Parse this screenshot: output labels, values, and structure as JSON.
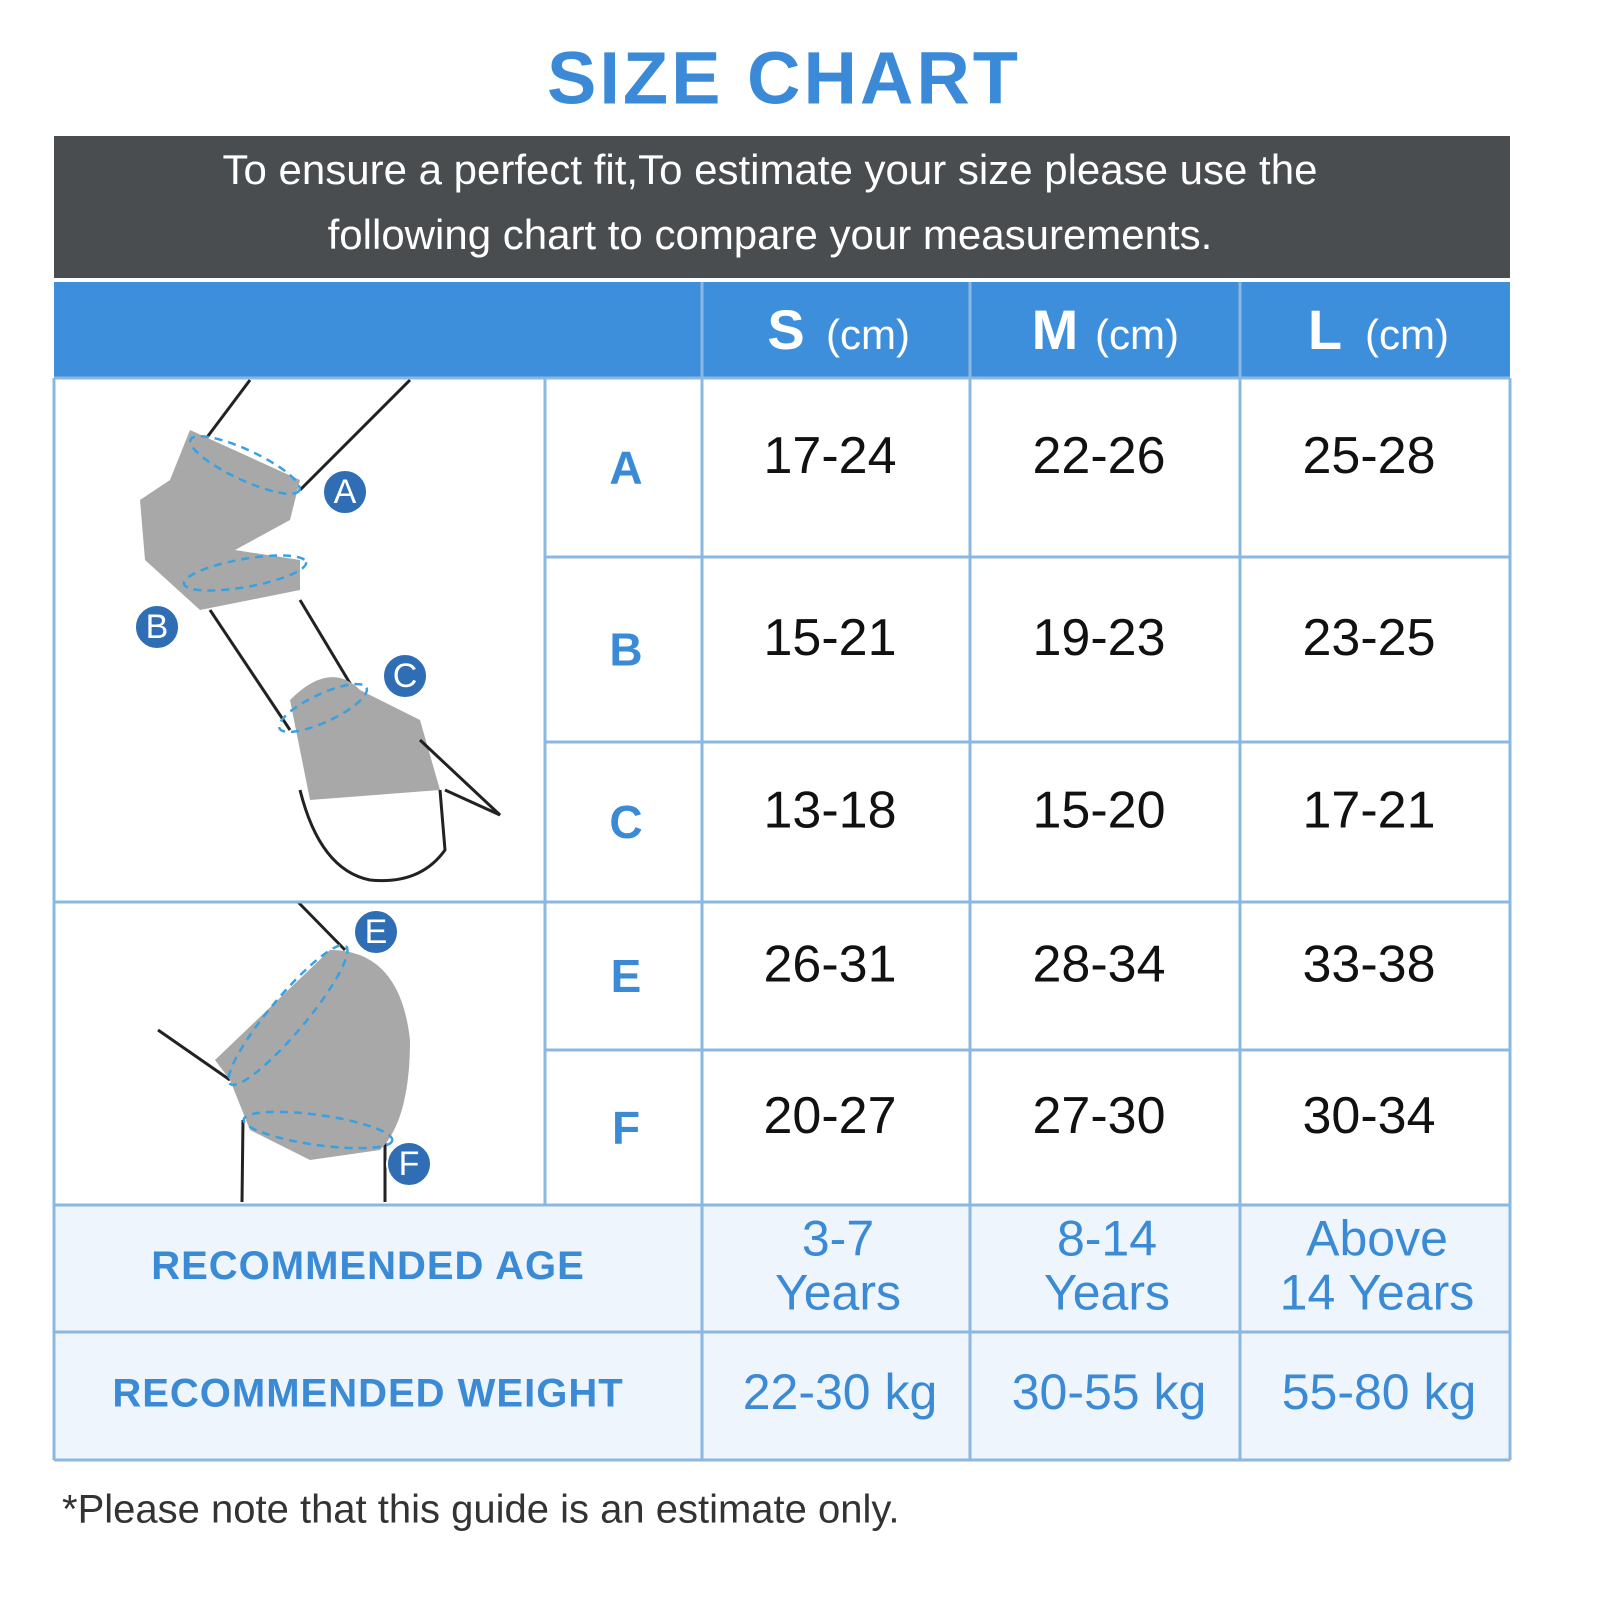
{
  "title": "SIZE CHART",
  "intro": [
    "To ensure a perfect fit,To estimate your size please use the",
    "following chart to compare your measurements."
  ],
  "table": {
    "columns": [
      {
        "size": "S",
        "unit": "(cm)"
      },
      {
        "size": "M",
        "unit": "(cm)"
      },
      {
        "size": "L",
        "unit": "(cm)"
      }
    ],
    "rows": [
      {
        "label": "A",
        "values": [
          "17-24",
          "22-26",
          "25-28"
        ]
      },
      {
        "label": "B",
        "values": [
          "15-21",
          "19-23",
          "23-25"
        ]
      },
      {
        "label": "C",
        "values": [
          "13-18",
          "15-20",
          "17-21"
        ]
      },
      {
        "label": "E",
        "values": [
          "26-31",
          "28-34",
          "33-38"
        ]
      },
      {
        "label": "F",
        "values": [
          "20-27",
          "27-30",
          "30-34"
        ]
      }
    ],
    "age": {
      "label": "RECOMMENDED AGE",
      "values": [
        [
          "3-7",
          "Years"
        ],
        [
          "8-14",
          "Years"
        ],
        [
          "Above",
          "14 Years"
        ]
      ]
    },
    "weight": {
      "label": "RECOMMENDED WEIGHT",
      "values": [
        "22-30 kg",
        "30-55 kg",
        "55-80 kg"
      ]
    }
  },
  "illustration": {
    "labels": [
      "A",
      "B",
      "C",
      "E",
      "F"
    ]
  },
  "footnote": "*Please note that this guide is an estimate only."
}
